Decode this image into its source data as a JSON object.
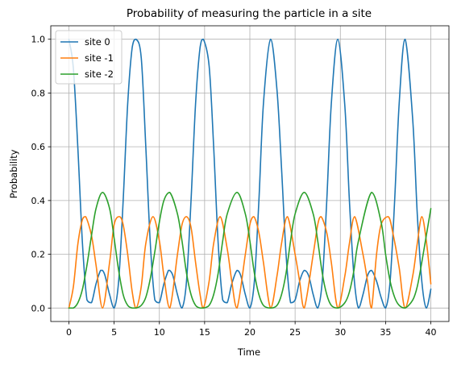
{
  "chart_data": {
    "type": "line",
    "title": "Probability of measuring the particle in a site",
    "xlabel": "Time",
    "ylabel": "Probability",
    "xlim": [
      -2,
      42
    ],
    "ylim": [
      -0.05,
      1.05
    ],
    "xticks": [
      0,
      5,
      10,
      15,
      20,
      25,
      30,
      35,
      40
    ],
    "yticks": [
      0.0,
      0.2,
      0.4,
      0.6,
      0.8,
      1.0
    ],
    "xtick_labels": [
      "0",
      "5",
      "10",
      "15",
      "20",
      "25",
      "30",
      "35",
      "40"
    ],
    "ytick_labels": [
      "0.0",
      "0.2",
      "0.4",
      "0.6",
      "0.8",
      "1.0"
    ],
    "grid": true,
    "legend_position": "top-left",
    "series": [
      {
        "name": "site 0",
        "color": "#1f77b4",
        "x": [
          0,
          0.5,
          1,
          1.5,
          2,
          2.5,
          3,
          3.5,
          3.72,
          4,
          4.5,
          5,
          5.5,
          6,
          6.5,
          7,
          7.43,
          8,
          8.5,
          9,
          9.5,
          10,
          10.5,
          11,
          11.15,
          11.5,
          12,
          12.5,
          13,
          13.5,
          14,
          14.5,
          14.86,
          15.5,
          16,
          16.5,
          17,
          17.5,
          18,
          18.58,
          19,
          19.5,
          20,
          20.5,
          21,
          21.5,
          22.29,
          23,
          23.5,
          24,
          24.5,
          25,
          25.5,
          26.01,
          26.5,
          27,
          27.5,
          28,
          28.5,
          29,
          29.72,
          30.5,
          31,
          31.5,
          32,
          32.5,
          33,
          33.44,
          34,
          34.5,
          35,
          35.5,
          36,
          36.5,
          37.15,
          38,
          38.5,
          39,
          39.5,
          40
        ],
        "values": [
          1.0,
          0.89,
          0.59,
          0.24,
          0.03,
          0.02,
          0.09,
          0.14,
          0.14,
          0.12,
          0.05,
          0.0,
          0.1,
          0.4,
          0.76,
          0.97,
          1.0,
          0.93,
          0.6,
          0.24,
          0.03,
          0.02,
          0.09,
          0.14,
          0.14,
          0.12,
          0.05,
          0.0,
          0.1,
          0.4,
          0.76,
          0.97,
          1.0,
          0.9,
          0.6,
          0.24,
          0.03,
          0.02,
          0.09,
          0.14,
          0.12,
          0.05,
          0.0,
          0.1,
          0.4,
          0.76,
          1.0,
          0.81,
          0.52,
          0.2,
          0.02,
          0.03,
          0.1,
          0.14,
          0.12,
          0.05,
          0.0,
          0.1,
          0.4,
          0.76,
          1.0,
          0.75,
          0.4,
          0.12,
          0.0,
          0.05,
          0.12,
          0.14,
          0.1,
          0.04,
          0.0,
          0.1,
          0.4,
          0.76,
          1.0,
          0.7,
          0.35,
          0.1,
          0.0,
          0.07
        ]
      },
      {
        "name": "site -1",
        "color": "#ff7f0e",
        "x": [
          0,
          0.5,
          1,
          1.5,
          1.86,
          2.5,
          3,
          3.72,
          4.5,
          5,
          5.57,
          6,
          6.5,
          7,
          7.43,
          8,
          8.5,
          9.29,
          10,
          10.5,
          11.15,
          12,
          12.5,
          13.0,
          13.5,
          14,
          14.5,
          14.86,
          15.5,
          16,
          16.72,
          17.5,
          18,
          18.58,
          19.5,
          20,
          20.44,
          21,
          21.5,
          22.29,
          23,
          23.5,
          24.15,
          25,
          25.5,
          26.01,
          27,
          27.5,
          27.87,
          28.5,
          29,
          29.72,
          30.5,
          31,
          31.58,
          32.5,
          33,
          33.44,
          34,
          34.5,
          35.3,
          35.8,
          36.5,
          37.15,
          38,
          38.5,
          39.0,
          39.5,
          40
        ],
        "values": [
          0.0,
          0.08,
          0.24,
          0.33,
          0.34,
          0.27,
          0.16,
          0.0,
          0.17,
          0.31,
          0.34,
          0.31,
          0.2,
          0.06,
          0.0,
          0.08,
          0.24,
          0.34,
          0.25,
          0.12,
          0.0,
          0.2,
          0.31,
          0.34,
          0.3,
          0.17,
          0.05,
          0.0,
          0.1,
          0.24,
          0.34,
          0.22,
          0.1,
          0.0,
          0.2,
          0.31,
          0.34,
          0.28,
          0.17,
          0.0,
          0.12,
          0.24,
          0.34,
          0.2,
          0.1,
          0.0,
          0.2,
          0.31,
          0.34,
          0.28,
          0.17,
          0.0,
          0.12,
          0.24,
          0.34,
          0.2,
          0.1,
          0.0,
          0.2,
          0.31,
          0.34,
          0.28,
          0.15,
          0.0,
          0.12,
          0.24,
          0.34,
          0.25,
          0.09
        ]
      },
      {
        "name": "site -2",
        "color": "#2ca02c",
        "x": [
          0,
          0.5,
          1,
          1.5,
          2,
          2.5,
          3,
          3.72,
          4.5,
          5,
          5.5,
          6,
          6.5,
          7,
          7.43,
          8,
          8.5,
          9,
          9.5,
          10,
          10.5,
          11.15,
          12,
          12.5,
          13,
          13.5,
          14,
          14.5,
          14.86,
          15.5,
          16,
          16.5,
          17,
          17.5,
          18.58,
          19.5,
          20,
          20.5,
          21,
          21.5,
          22.29,
          23,
          23.5,
          24,
          24.5,
          25,
          26.01,
          27,
          27.5,
          28,
          28.5,
          29,
          29.72,
          30.5,
          31,
          31.5,
          32,
          33.44,
          34.5,
          35,
          35.5,
          36,
          36.5,
          37.15,
          38,
          38.5,
          39,
          39.5,
          40
        ],
        "values": [
          0.0,
          0.0,
          0.02,
          0.07,
          0.16,
          0.27,
          0.37,
          0.43,
          0.37,
          0.26,
          0.14,
          0.05,
          0.01,
          0.0,
          0.0,
          0.01,
          0.04,
          0.11,
          0.21,
          0.32,
          0.4,
          0.43,
          0.35,
          0.25,
          0.13,
          0.05,
          0.01,
          0.0,
          0.0,
          0.01,
          0.05,
          0.13,
          0.25,
          0.35,
          0.43,
          0.35,
          0.25,
          0.13,
          0.05,
          0.01,
          0.0,
          0.01,
          0.05,
          0.13,
          0.25,
          0.35,
          0.43,
          0.35,
          0.25,
          0.13,
          0.05,
          0.01,
          0.0,
          0.02,
          0.06,
          0.14,
          0.25,
          0.43,
          0.32,
          0.2,
          0.1,
          0.04,
          0.01,
          0.0,
          0.03,
          0.08,
          0.17,
          0.27,
          0.37
        ]
      }
    ]
  }
}
